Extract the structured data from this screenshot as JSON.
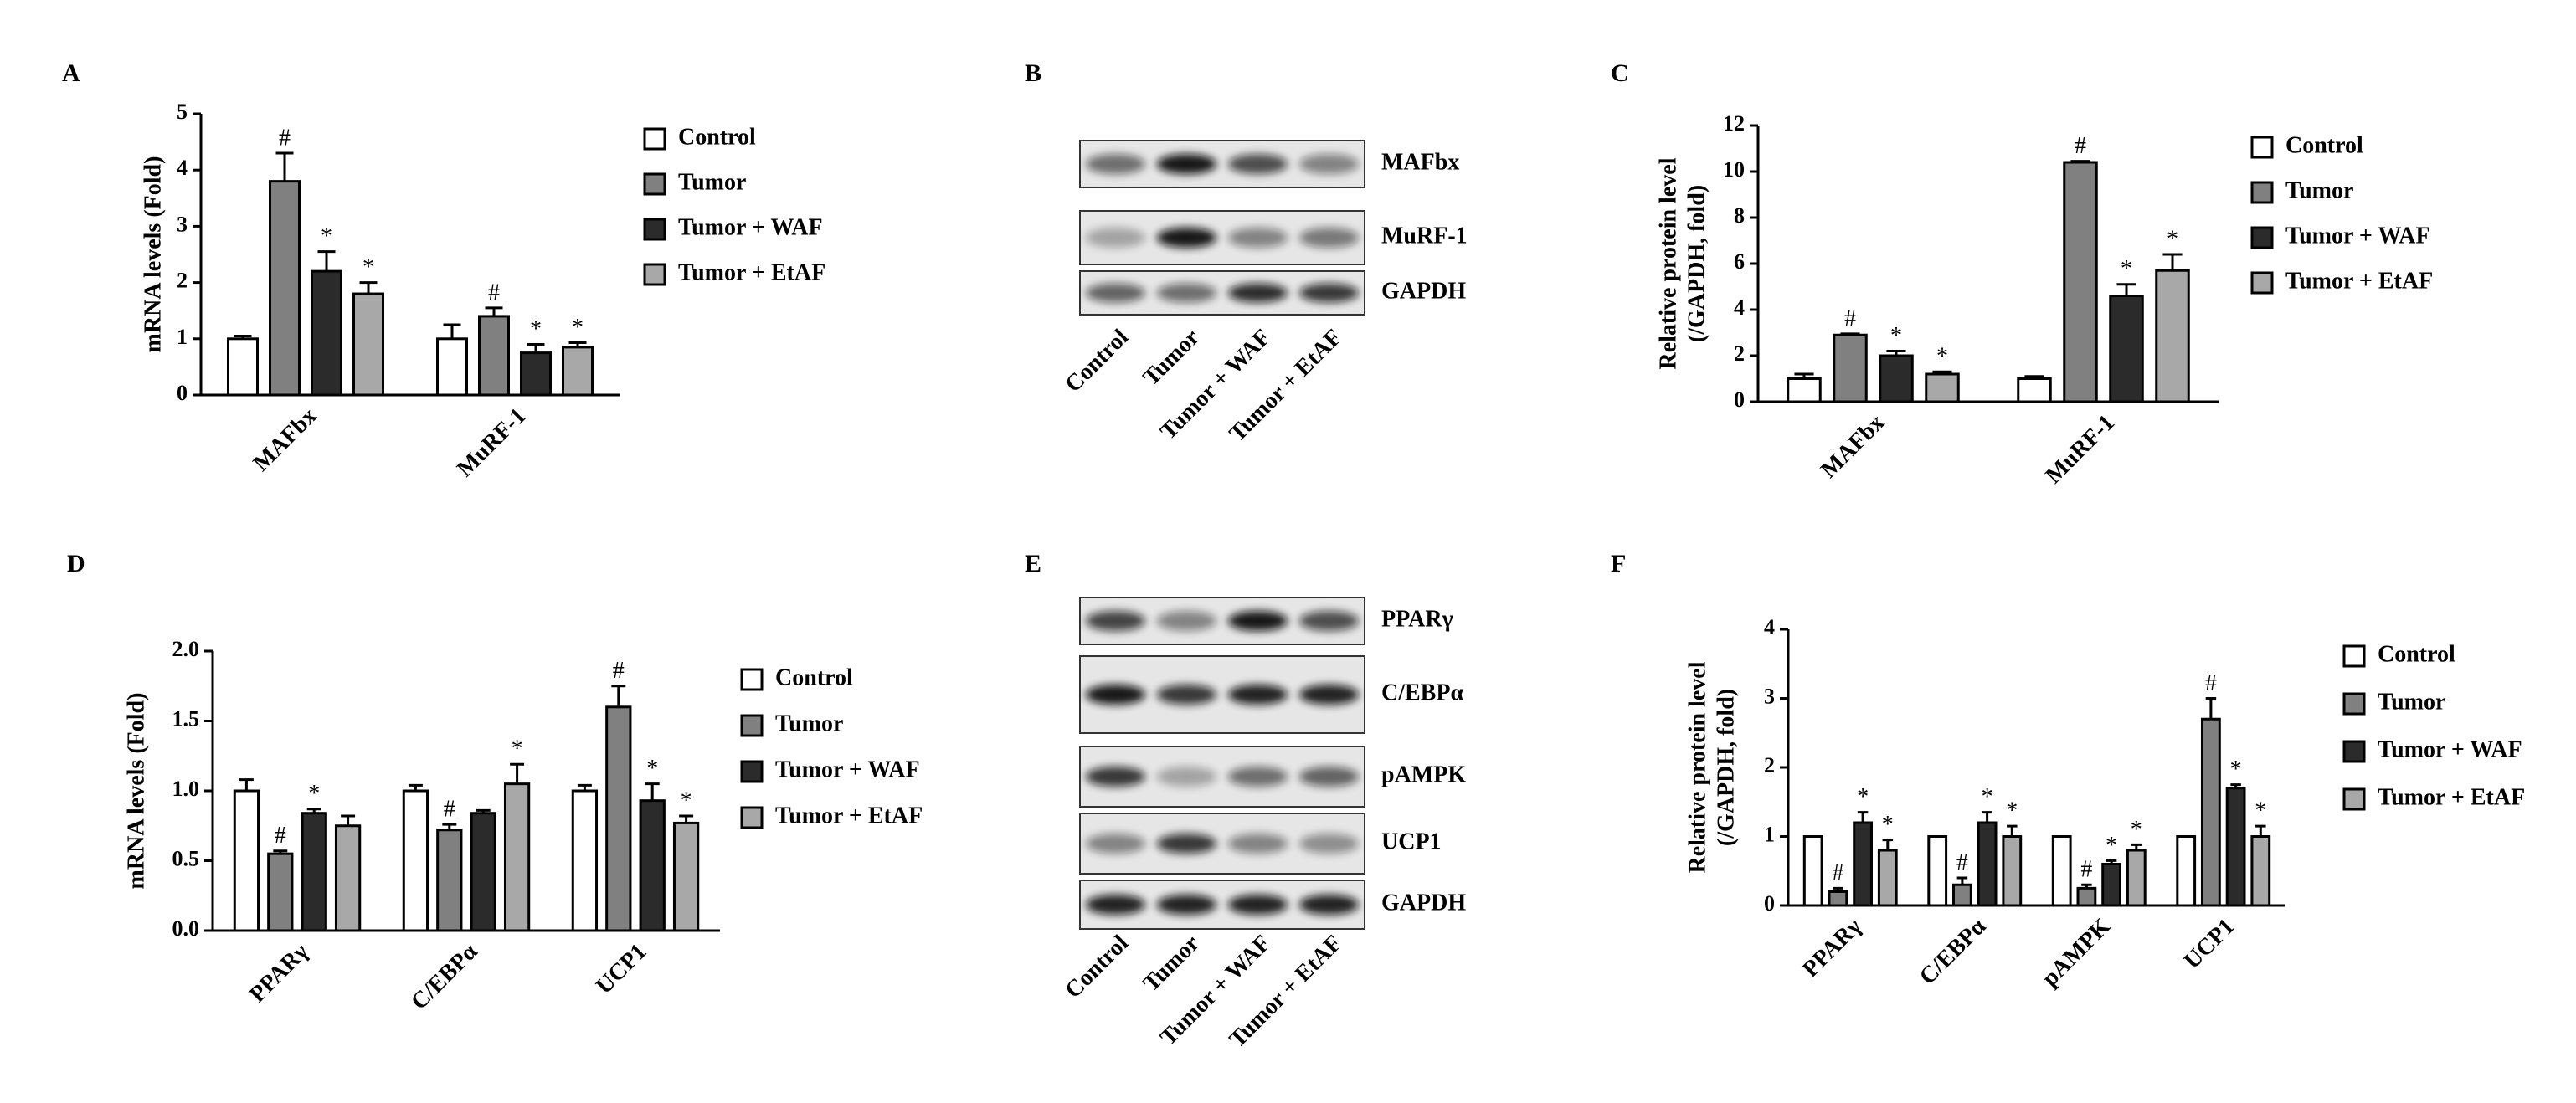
{
  "chart_data": [
    {
      "type": "bar",
      "panel": "A",
      "ylabel": "mRNA levels (Fold)",
      "categories": [
        "MAFbx",
        "MuRF-1"
      ],
      "ylim": [
        0,
        5
      ],
      "yticks": [
        0,
        1,
        2,
        3,
        4,
        5
      ],
      "series": [
        {
          "name": "Control",
          "color": "#ffffff",
          "values": [
            1.0,
            1.0
          ],
          "errors": [
            0.05,
            0.25
          ],
          "labels": [
            null,
            null
          ]
        },
        {
          "name": "Tumor",
          "color": "#808080",
          "values": [
            3.8,
            1.4
          ],
          "errors": [
            0.5,
            0.15
          ],
          "labels": [
            "#",
            "#"
          ]
        },
        {
          "name": "Tumor + WAF",
          "color": "#2b2b2b",
          "values": [
            2.2,
            0.75
          ],
          "errors": [
            0.35,
            0.15
          ],
          "labels": [
            "*",
            "*"
          ]
        },
        {
          "name": "Tumor + EtAF",
          "color": "#a8a8a8",
          "values": [
            1.8,
            0.85
          ],
          "errors": [
            0.2,
            0.08
          ],
          "labels": [
            "*",
            "*"
          ]
        }
      ]
    },
    {
      "type": "bar",
      "panel": "C",
      "ylabel": [
        "Relative protein level",
        "(/GAPDH, fold)"
      ],
      "categories": [
        "MAFbx",
        "MuRF-1"
      ],
      "ylim": [
        0,
        12
      ],
      "yticks": [
        0,
        2,
        4,
        6,
        8,
        10,
        12
      ],
      "series": [
        {
          "name": "Control",
          "color": "#ffffff",
          "values": [
            1.0,
            1.0
          ],
          "errors": [
            0.2,
            0.1
          ],
          "labels": [
            null,
            null
          ]
        },
        {
          "name": "Tumor",
          "color": "#808080",
          "values": [
            2.9,
            10.4
          ],
          "errors": [
            0.05,
            0.05
          ],
          "labels": [
            "#",
            "#"
          ]
        },
        {
          "name": "Tumor + WAF",
          "color": "#2b2b2b",
          "values": [
            2.0,
            4.6
          ],
          "errors": [
            0.2,
            0.5
          ],
          "labels": [
            "*",
            "*"
          ]
        },
        {
          "name": "Tumor + EtAF",
          "color": "#a8a8a8",
          "values": [
            1.2,
            5.7
          ],
          "errors": [
            0.1,
            0.7
          ],
          "labels": [
            "*",
            "*"
          ]
        }
      ]
    },
    {
      "type": "bar",
      "panel": "D",
      "ylabel": "mRNA levels (Fold)",
      "categories": [
        "PPARγ",
        "C/EBPα",
        "UCP1"
      ],
      "ylim": [
        0,
        2
      ],
      "yticks": [
        {
          "value": 0,
          "label": "0.0"
        },
        0.5,
        {
          "value": 1,
          "label": "1.0"
        },
        1.5,
        {
          "value": 2,
          "label": "2.0"
        }
      ],
      "series": [
        {
          "name": "Control",
          "color": "#ffffff",
          "values": [
            1.0,
            1.0,
            1.0
          ],
          "errors": [
            0.08,
            0.04,
            0.04
          ],
          "labels": [
            null,
            null,
            null
          ]
        },
        {
          "name": "Tumor",
          "color": "#808080",
          "values": [
            0.55,
            0.72,
            1.6
          ],
          "errors": [
            0.02,
            0.04,
            0.15
          ],
          "labels": [
            "#",
            "#",
            "#"
          ]
        },
        {
          "name": "Tumor + WAF",
          "color": "#2b2b2b",
          "values": [
            0.84,
            0.84,
            0.93
          ],
          "errors": [
            0.03,
            0.02,
            0.12
          ],
          "labels": [
            "*",
            null,
            "*"
          ]
        },
        {
          "name": "Tumor + EtAF",
          "color": "#a8a8a8",
          "values": [
            0.75,
            1.05,
            0.77
          ],
          "errors": [
            0.07,
            0.14,
            0.05
          ],
          "labels": [
            null,
            "*",
            "*"
          ]
        }
      ]
    },
    {
      "type": "bar",
      "panel": "F",
      "ylabel": [
        "Relative protein level",
        "(/GAPDH, fold)"
      ],
      "categories": [
        "PPARγ",
        "C/EBPα",
        "pAMPK",
        "UCP1"
      ],
      "ylim": [
        0,
        4
      ],
      "yticks": [
        0,
        1,
        2,
        3,
        4
      ],
      "series": [
        {
          "name": "Control",
          "color": "#ffffff",
          "values": [
            1.0,
            1.0,
            1.0,
            1.0
          ],
          "errors": [
            0,
            0,
            0,
            0
          ],
          "labels": [
            null,
            null,
            null,
            null
          ]
        },
        {
          "name": "Tumor",
          "color": "#808080",
          "values": [
            0.2,
            0.3,
            0.25,
            2.7
          ],
          "errors": [
            0.05,
            0.1,
            0.05,
            0.3
          ],
          "labels": [
            "#",
            "#",
            "#",
            "#"
          ]
        },
        {
          "name": "Tumor + WAF",
          "color": "#2b2b2b",
          "values": [
            1.2,
            1.2,
            0.6,
            1.7
          ],
          "errors": [
            0.15,
            0.15,
            0.05,
            0.05
          ],
          "labels": [
            "*",
            "*",
            "*",
            "*"
          ]
        },
        {
          "name": "Tumor + EtAF",
          "color": "#a8a8a8",
          "values": [
            0.8,
            1.0,
            0.8,
            1.0
          ],
          "errors": [
            0.15,
            0.15,
            0.08,
            0.15
          ],
          "labels": [
            "*",
            "*",
            "*",
            "*"
          ]
        }
      ]
    }
  ],
  "blots": [
    {
      "panel": "B",
      "proteins": [
        "MAFbx",
        "MuRF-1",
        "GAPDH"
      ],
      "lanes": [
        "Control",
        "Tumor",
        "Tumor + WAF",
        "Tumor + EtAF"
      ]
    },
    {
      "panel": "E",
      "proteins": [
        "PPARγ",
        "C/EBPα",
        "pAMPK",
        "UCP1",
        "GAPDH"
      ],
      "lanes": [
        "Control",
        "Tumor",
        "Tumor + WAF",
        "Tumor + EtAF"
      ]
    }
  ]
}
